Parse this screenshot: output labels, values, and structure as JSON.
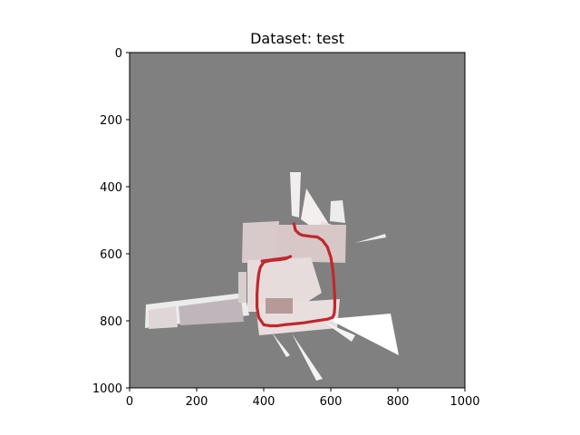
{
  "figure": {
    "title": "Dataset: test"
  },
  "chart_data": {
    "type": "image",
    "title": "Dataset: test",
    "xlabel": "",
    "ylabel": "",
    "xlim": [
      0,
      1000
    ],
    "ylim": [
      1000,
      0
    ],
    "y_axis_inverted": true,
    "x_ticks": [
      0,
      200,
      400,
      600,
      800,
      1000
    ],
    "y_ticks": [
      0,
      200,
      400,
      600,
      800,
      1000
    ],
    "grid": false,
    "background_color": "#808080",
    "trajectory_color": "#c0282d",
    "trajectory": {
      "x": [
        490,
        495,
        505,
        515,
        540,
        560,
        575,
        590,
        600,
        605,
        608,
        610,
        612,
        612,
        610,
        605,
        590,
        570,
        545,
        520,
        500,
        480,
        460,
        440,
        420,
        400,
        385,
        380,
        380,
        382,
        385,
        390,
        400,
        420,
        445,
        465,
        480,
        470,
        450,
        430,
        410,
        395
      ],
      "y": [
        510,
        530,
        540,
        545,
        548,
        550,
        560,
        580,
        610,
        640,
        670,
        700,
        730,
        760,
        780,
        790,
        795,
        798,
        802,
        806,
        808,
        810,
        812,
        815,
        815,
        812,
        790,
        760,
        720,
        690,
        660,
        640,
        625,
        620,
        618,
        615,
        608,
        612,
        615,
        617,
        620,
        622
      ]
    }
  }
}
